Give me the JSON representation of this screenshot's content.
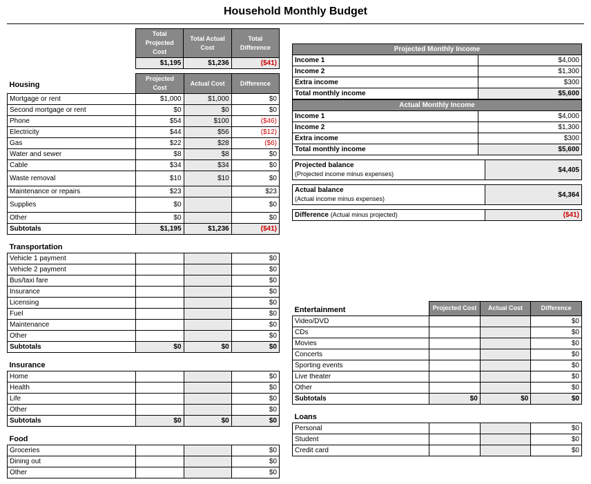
{
  "title": "Household Monthly Budget",
  "summary": {
    "headers": [
      "Total Projected Cost",
      "Total Actual Cost",
      "Total Difference"
    ],
    "values": [
      "$1,195",
      "$1,236",
      "($41)"
    ],
    "neg": [
      false,
      false,
      true
    ]
  },
  "col_headers": [
    "Projected Cost",
    "Actual Cost",
    "Difference"
  ],
  "housing": {
    "title": "Housing",
    "rows": [
      {
        "l": "Mortgage or rent",
        "p": "$1,000",
        "a": "$1,000",
        "d": "$0"
      },
      {
        "l": "Second mortgage or rent",
        "p": "$0",
        "a": "$0",
        "d": "$0"
      },
      {
        "l": "Phone",
        "p": "$54",
        "a": "$100",
        "d": "($46)",
        "neg": true
      },
      {
        "l": "Electricity",
        "p": "$44",
        "a": "$56",
        "d": "($12)",
        "neg": true
      },
      {
        "l": "Gas",
        "p": "$22",
        "a": "$28",
        "d": "($6)",
        "neg": true
      },
      {
        "l": "Water and sewer",
        "p": "$8",
        "a": "$8",
        "d": "$0"
      },
      {
        "l": "Cable",
        "p": "$34",
        "a": "$34",
        "d": "$0"
      },
      {
        "l": "Waste removal",
        "p": "$10",
        "a": "$10",
        "d": "$0",
        "tall": true
      },
      {
        "l": "Maintenance or repairs",
        "p": "$23",
        "a": "",
        "d": "$23"
      },
      {
        "l": "Supplies",
        "p": "$0",
        "a": "",
        "d": "$0",
        "tall": true
      },
      {
        "l": "Other",
        "p": "$0",
        "a": "",
        "d": "$0"
      }
    ],
    "subtotal": {
      "l": "Subtotals",
      "p": "$1,195",
      "a": "$1,236",
      "d": "($41)",
      "neg": true
    }
  },
  "transport": {
    "title": "Transportation",
    "rows": [
      {
        "l": "Vehicle 1 payment",
        "d": "$0"
      },
      {
        "l": "Vehicle 2 payment",
        "d": "$0"
      },
      {
        "l": "Bus/taxi fare",
        "d": "$0"
      },
      {
        "l": "Insurance",
        "d": "$0"
      },
      {
        "l": "Licensing",
        "d": "$0"
      },
      {
        "l": "Fuel",
        "d": "$0"
      },
      {
        "l": "Maintenance",
        "d": "$0"
      },
      {
        "l": "Other",
        "d": "$0"
      }
    ],
    "subtotal": {
      "l": "Subtotals",
      "p": "$0",
      "a": "$0",
      "d": "$0"
    }
  },
  "insurance": {
    "title": "Insurance",
    "rows": [
      {
        "l": "Home",
        "d": "$0"
      },
      {
        "l": "Health",
        "d": "$0"
      },
      {
        "l": "Life",
        "d": "$0"
      },
      {
        "l": "Other",
        "d": "$0"
      }
    ],
    "subtotal": {
      "l": "Subtotals",
      "p": "$0",
      "a": "$0",
      "d": "$0"
    }
  },
  "food": {
    "title": "Food",
    "rows": [
      {
        "l": "Groceries",
        "d": "$0"
      },
      {
        "l": "Dining out",
        "d": "$0"
      },
      {
        "l": "Other",
        "d": "$0"
      }
    ]
  },
  "proj_income": {
    "title": "Projected Monthly Income",
    "rows": [
      {
        "l": "Income 1",
        "v": "$4,000"
      },
      {
        "l": "Income 2",
        "v": "$1,300"
      },
      {
        "l": "Extra income",
        "v": "$300"
      }
    ],
    "total": {
      "l": "Total monthly income",
      "v": "$5,600"
    }
  },
  "actual_income": {
    "title": "Actual Monthly Income",
    "rows": [
      {
        "l": "Income 1",
        "v": "$4,000"
      },
      {
        "l": "Income 2",
        "v": "$1,300"
      },
      {
        "l": "Extra income",
        "v": "$300"
      }
    ],
    "total": {
      "l": "Total monthly income",
      "v": "$5,600"
    }
  },
  "balances": [
    {
      "l1": "Projected balance",
      "l2": "(Projected income minus expenses)",
      "v": "$4,405"
    },
    {
      "l1": "Actual balance",
      "l2": "(Actual income minus expenses)",
      "v": "$4,364"
    },
    {
      "l1": "Difference",
      "l2": "(Actual minus projected)",
      "v": "($41)",
      "neg": true,
      "inline": true
    }
  ],
  "entertainment": {
    "title": "Entertainment",
    "rows": [
      {
        "l": "Video/DVD",
        "d": "$0"
      },
      {
        "l": "CDs",
        "d": "$0"
      },
      {
        "l": "Movies",
        "d": "$0"
      },
      {
        "l": "Concerts",
        "d": "$0"
      },
      {
        "l": "Sporting events",
        "d": "$0"
      },
      {
        "l": "Live theater",
        "d": "$0"
      },
      {
        "l": "Other",
        "d": "$0"
      }
    ],
    "subtotal": {
      "l": "Subtotals",
      "p": "$0",
      "a": "$0",
      "d": "$0"
    }
  },
  "loans": {
    "title": "Loans",
    "rows": [
      {
        "l": "Personal",
        "d": "$0"
      },
      {
        "l": "Student",
        "d": "$0"
      },
      {
        "l": "Credit card",
        "d": "$0"
      }
    ]
  }
}
